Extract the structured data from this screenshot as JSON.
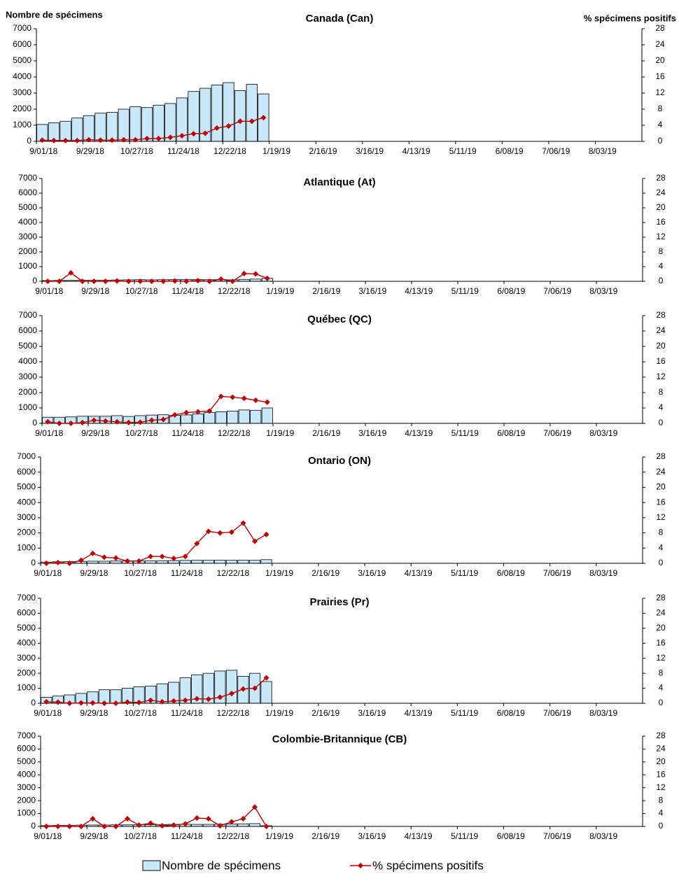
{
  "chart_data": [
    {
      "type": "bar-line",
      "title": "Canada (Can)",
      "ylabel": "Nombre de spécimens",
      "y2label": "% spécimens positifs",
      "categories": [
        "9/01/18",
        null,
        null,
        null,
        "9/29/18",
        null,
        null,
        null,
        "10/27/18",
        null,
        null,
        null,
        "11/24/18",
        null,
        null,
        null,
        "12/22/18",
        null,
        null,
        null,
        "1/19/19",
        null,
        null,
        null,
        "2/16/19",
        null,
        null,
        null,
        "3/16/19",
        null,
        null,
        null,
        "4/13/19",
        null,
        null,
        null,
        "5/11/19",
        null,
        null,
        null,
        "6/08/19",
        null,
        null,
        null,
        "7/06/19",
        null,
        null,
        null,
        "8/03/19",
        null,
        null,
        null
      ],
      "series": [
        {
          "name": "Nombre de spécimens",
          "color": "#c9e8f9",
          "values": [
            1050,
            1150,
            1250,
            1450,
            1600,
            1750,
            1800,
            2000,
            2150,
            2100,
            2250,
            2350,
            2700,
            3100,
            3300,
            3500,
            3650,
            3150,
            3550,
            2950,
            null,
            null,
            null,
            null,
            null,
            null,
            null,
            null,
            null,
            null,
            null,
            null,
            null,
            null,
            null,
            null,
            null,
            null,
            null,
            null,
            null,
            null,
            null,
            null,
            null,
            null,
            null,
            null,
            null,
            null,
            null,
            null
          ]
        },
        {
          "name": "% spécimens positifs",
          "color": "#c00000",
          "axis": "y2",
          "values": [
            0.3,
            0.2,
            0.2,
            0.2,
            0.4,
            0.3,
            0.3,
            0.4,
            0.4,
            0.7,
            0.7,
            1.0,
            1.4,
            1.9,
            2.0,
            3.3,
            3.8,
            5.0,
            5.0,
            5.9,
            null,
            null,
            null,
            null,
            null,
            null,
            null,
            null,
            null,
            null,
            null,
            null,
            null,
            null,
            null,
            null,
            null,
            null,
            null,
            null,
            null,
            null,
            null,
            null,
            null,
            null,
            null,
            null,
            null,
            null,
            null,
            null
          ]
        }
      ],
      "ylim": [
        0,
        7000
      ],
      "yticks": [
        0,
        1000,
        2000,
        3000,
        4000,
        5000,
        6000,
        7000
      ],
      "y2lim": [
        0,
        28
      ],
      "y2ticks": [
        0,
        4,
        8,
        12,
        16,
        20,
        24,
        28
      ]
    },
    {
      "type": "bar-line",
      "title": "Atlantique (At)",
      "categories": [
        "9/01/18",
        null,
        null,
        null,
        "9/29/18",
        null,
        null,
        null,
        "10/27/18",
        null,
        null,
        null,
        "11/24/18",
        null,
        null,
        null,
        "12/22/18",
        null,
        null,
        null,
        "1/19/19",
        null,
        null,
        null,
        "2/16/19",
        null,
        null,
        null,
        "3/16/19",
        null,
        null,
        null,
        "4/13/19",
        null,
        null,
        null,
        "5/11/19",
        null,
        null,
        null,
        "6/08/19",
        null,
        null,
        null,
        "7/06/19",
        null,
        null,
        null,
        "8/03/19",
        null,
        null,
        null
      ],
      "series": [
        {
          "color": "#c9e8f9",
          "values": [
            50,
            60,
            60,
            70,
            80,
            80,
            90,
            100,
            110,
            100,
            110,
            120,
            130,
            120,
            110,
            120,
            100,
            130,
            150,
            200,
            null,
            null,
            null,
            null,
            null,
            null,
            null,
            null,
            null,
            null,
            null,
            null,
            null,
            null,
            null,
            null,
            null,
            null,
            null,
            null,
            null,
            null,
            null,
            null,
            null,
            null,
            null,
            null,
            null,
            null,
            null,
            null
          ]
        },
        {
          "color": "#c00000",
          "axis": "y2",
          "values": [
            0,
            0,
            2.3,
            0,
            0,
            0,
            0.1,
            0,
            0,
            0,
            0,
            0.1,
            0,
            0.2,
            0,
            0.6,
            0,
            2.1,
            2.0,
            0.8,
            null,
            null,
            null,
            null,
            null,
            null,
            null,
            null,
            null,
            null,
            null,
            null,
            null,
            null,
            null,
            null,
            null,
            null,
            null,
            null,
            null,
            null,
            null,
            null,
            null,
            null,
            null,
            null,
            null,
            null,
            null,
            null
          ]
        }
      ],
      "ylim": [
        0,
        7000
      ],
      "yticks": [
        0,
        1000,
        2000,
        3000,
        4000,
        5000,
        6000,
        7000
      ],
      "y2lim": [
        0,
        28
      ],
      "y2ticks": [
        0,
        4,
        8,
        12,
        16,
        20,
        24,
        28
      ]
    },
    {
      "type": "bar-line",
      "title": "Québec (QC)",
      "categories": [
        "9/01/18",
        null,
        null,
        null,
        "9/29/18",
        null,
        null,
        null,
        "10/27/18",
        null,
        null,
        null,
        "11/24/18",
        null,
        null,
        null,
        "12/22/18",
        null,
        null,
        null,
        "1/19/19",
        null,
        null,
        null,
        "2/16/19",
        null,
        null,
        null,
        "3/16/19",
        null,
        null,
        null,
        "4/13/19",
        null,
        null,
        null,
        "5/11/19",
        null,
        null,
        null,
        "6/08/19",
        null,
        null,
        null,
        "7/06/19",
        null,
        null,
        null,
        "8/03/19",
        null,
        null,
        null
      ],
      "series": [
        {
          "color": "#c9e8f9",
          "values": [
            400,
            400,
            420,
            460,
            460,
            460,
            500,
            450,
            500,
            540,
            560,
            520,
            550,
            620,
            700,
            750,
            800,
            870,
            850,
            1000,
            null,
            null,
            null,
            null,
            null,
            null,
            null,
            null,
            null,
            null,
            null,
            null,
            null,
            null,
            null,
            null,
            null,
            null,
            null,
            null,
            null,
            null,
            null,
            null,
            null,
            null,
            null,
            null,
            null,
            null,
            null,
            null
          ]
        },
        {
          "color": "#c00000",
          "axis": "y2",
          "values": [
            0.4,
            0,
            0,
            0.2,
            0.8,
            0.6,
            0.4,
            0.2,
            0.3,
            0.8,
            1.0,
            2.2,
            2.8,
            3.0,
            3.2,
            7.0,
            6.8,
            6.5,
            6.0,
            5.5,
            null,
            null,
            null,
            null,
            null,
            null,
            null,
            null,
            null,
            null,
            null,
            null,
            null,
            null,
            null,
            null,
            null,
            null,
            null,
            null,
            null,
            null,
            null,
            null,
            null,
            null,
            null,
            null,
            null,
            null,
            null,
            null
          ]
        }
      ],
      "ylim": [
        0,
        7000
      ],
      "yticks": [
        0,
        1000,
        2000,
        3000,
        4000,
        5000,
        6000,
        7000
      ],
      "y2lim": [
        0,
        28
      ],
      "y2ticks": [
        0,
        4,
        8,
        12,
        16,
        20,
        24,
        28
      ]
    },
    {
      "type": "bar-line",
      "title": "Ontario (ON)",
      "categories": [
        "9/01/18",
        null,
        null,
        null,
        "9/29/18",
        null,
        null,
        null,
        "10/27/18",
        null,
        null,
        null,
        "11/24/18",
        null,
        null,
        null,
        "12/22/18",
        null,
        null,
        null,
        "1/19/19",
        null,
        null,
        null,
        "2/16/19",
        null,
        null,
        null,
        "3/16/19",
        null,
        null,
        null,
        "4/13/19",
        null,
        null,
        null,
        "5/11/19",
        null,
        null,
        null,
        "6/08/19",
        null,
        null,
        null,
        "7/06/19",
        null,
        null,
        null,
        "8/03/19",
        null,
        null,
        null
      ],
      "series": [
        {
          "color": "#c9e8f9",
          "values": [
            80,
            100,
            110,
            130,
            140,
            140,
            150,
            150,
            160,
            160,
            170,
            180,
            190,
            200,
            200,
            210,
            200,
            210,
            200,
            240,
            null,
            null,
            null,
            null,
            null,
            null,
            null,
            null,
            null,
            null,
            null,
            null,
            null,
            null,
            null,
            null,
            null,
            null,
            null,
            null,
            null,
            null,
            null,
            null,
            null,
            null,
            null,
            null,
            null,
            null,
            null,
            null
          ]
        },
        {
          "color": "#c00000",
          "axis": "y2",
          "values": [
            0,
            0.2,
            0,
            0.8,
            2.6,
            1.6,
            1.4,
            0.6,
            0.6,
            1.8,
            1.8,
            1.3,
            1.8,
            5.2,
            8.4,
            8.0,
            8.2,
            10.6,
            5.8,
            7.6,
            null,
            null,
            null,
            null,
            null,
            null,
            null,
            null,
            null,
            null,
            null,
            null,
            null,
            null,
            null,
            null,
            null,
            null,
            null,
            null,
            null,
            null,
            null,
            null,
            null,
            null,
            null,
            null,
            null,
            null,
            null,
            null
          ]
        }
      ],
      "ylim": [
        0,
        7000
      ],
      "yticks": [
        0,
        1000,
        2000,
        3000,
        4000,
        5000,
        6000,
        7000
      ],
      "y2lim": [
        0,
        28
      ],
      "y2ticks": [
        0,
        4,
        8,
        12,
        16,
        20,
        24,
        28
      ]
    },
    {
      "type": "bar-line",
      "title": "Prairies (Pr)",
      "categories": [
        "9/01/18",
        null,
        null,
        null,
        "9/29/18",
        null,
        null,
        null,
        "10/27/18",
        null,
        null,
        null,
        "11/24/18",
        null,
        null,
        null,
        "12/22/18",
        null,
        null,
        null,
        "1/19/19",
        null,
        null,
        null,
        "2/16/19",
        null,
        null,
        null,
        "3/16/19",
        null,
        null,
        null,
        "4/13/19",
        null,
        null,
        null,
        "5/11/19",
        null,
        null,
        null,
        "6/08/19",
        null,
        null,
        null,
        "7/06/19",
        null,
        null,
        null,
        "8/03/19",
        null,
        null,
        null
      ],
      "series": [
        {
          "color": "#c9e8f9",
          "values": [
            400,
            480,
            560,
            660,
            760,
            900,
            900,
            1000,
            1100,
            1150,
            1300,
            1400,
            1700,
            1900,
            2000,
            2150,
            2200,
            1800,
            2000,
            1450,
            null,
            null,
            null,
            null,
            null,
            null,
            null,
            null,
            null,
            null,
            null,
            null,
            null,
            null,
            null,
            null,
            null,
            null,
            null,
            null,
            null,
            null,
            null,
            null,
            null,
            null,
            null,
            null,
            null,
            null,
            null,
            null
          ]
        },
        {
          "color": "#c00000",
          "axis": "y2",
          "values": [
            0.4,
            0.3,
            0,
            0.1,
            0.1,
            0,
            0,
            0.3,
            0.2,
            0.8,
            0.4,
            0.6,
            0.8,
            1.2,
            1.1,
            1.6,
            2.6,
            3.8,
            4.0,
            6.8,
            null,
            null,
            null,
            null,
            null,
            null,
            null,
            null,
            null,
            null,
            null,
            null,
            null,
            null,
            null,
            null,
            null,
            null,
            null,
            null,
            null,
            null,
            null,
            null,
            null,
            null,
            null,
            null,
            null,
            null,
            null,
            null
          ]
        }
      ],
      "ylim": [
        0,
        7000
      ],
      "yticks": [
        0,
        1000,
        2000,
        3000,
        4000,
        5000,
        6000,
        7000
      ],
      "y2lim": [
        0,
        28
      ],
      "y2ticks": [
        0,
        4,
        8,
        12,
        16,
        20,
        24,
        28
      ]
    },
    {
      "type": "bar-line",
      "title": "Colombie-Britannique (CB)",
      "categories": [
        "9/01/18",
        null,
        null,
        null,
        "9/29/18",
        null,
        null,
        null,
        "10/27/18",
        null,
        null,
        null,
        "11/24/18",
        null,
        null,
        null,
        "12/22/18",
        null,
        null,
        null,
        "1/19/19",
        null,
        null,
        null,
        "2/16/19",
        null,
        null,
        null,
        "3/16/19",
        null,
        null,
        null,
        "4/13/19",
        null,
        null,
        null,
        "5/11/19",
        null,
        null,
        null,
        "6/08/19",
        null,
        null,
        null,
        "7/06/19",
        null,
        null,
        null,
        "8/03/19",
        null,
        null,
        null
      ],
      "series": [
        {
          "color": "#c9e8f9",
          "values": [
            60,
            80,
            90,
            100,
            110,
            110,
            120,
            120,
            140,
            140,
            140,
            160,
            170,
            160,
            160,
            170,
            180,
            200,
            220,
            60,
            null,
            null,
            null,
            null,
            null,
            null,
            null,
            null,
            null,
            null,
            null,
            null,
            null,
            null,
            null,
            null,
            null,
            null,
            null,
            null,
            null,
            null,
            null,
            null,
            null,
            null,
            null,
            null,
            null,
            null,
            null,
            null
          ]
        },
        {
          "color": "#c00000",
          "axis": "y2",
          "values": [
            0,
            0,
            0,
            0,
            2.4,
            0,
            0,
            2.4,
            0.4,
            1.0,
            0.2,
            0.4,
            0.8,
            2.6,
            2.4,
            0.2,
            1.4,
            2.4,
            6.0,
            0,
            null,
            null,
            null,
            null,
            null,
            null,
            null,
            null,
            null,
            null,
            null,
            null,
            null,
            null,
            null,
            null,
            null,
            null,
            null,
            null,
            null,
            null,
            null,
            null,
            null,
            null,
            null,
            null,
            null,
            null,
            null,
            null
          ]
        }
      ],
      "ylim": [
        0,
        7000
      ],
      "yticks": [
        0,
        1000,
        2000,
        3000,
        4000,
        5000,
        6000,
        7000
      ],
      "y2lim": [
        0,
        28
      ],
      "y2ticks": [
        0,
        4,
        8,
        12,
        16,
        20,
        24,
        28
      ]
    }
  ]
}
